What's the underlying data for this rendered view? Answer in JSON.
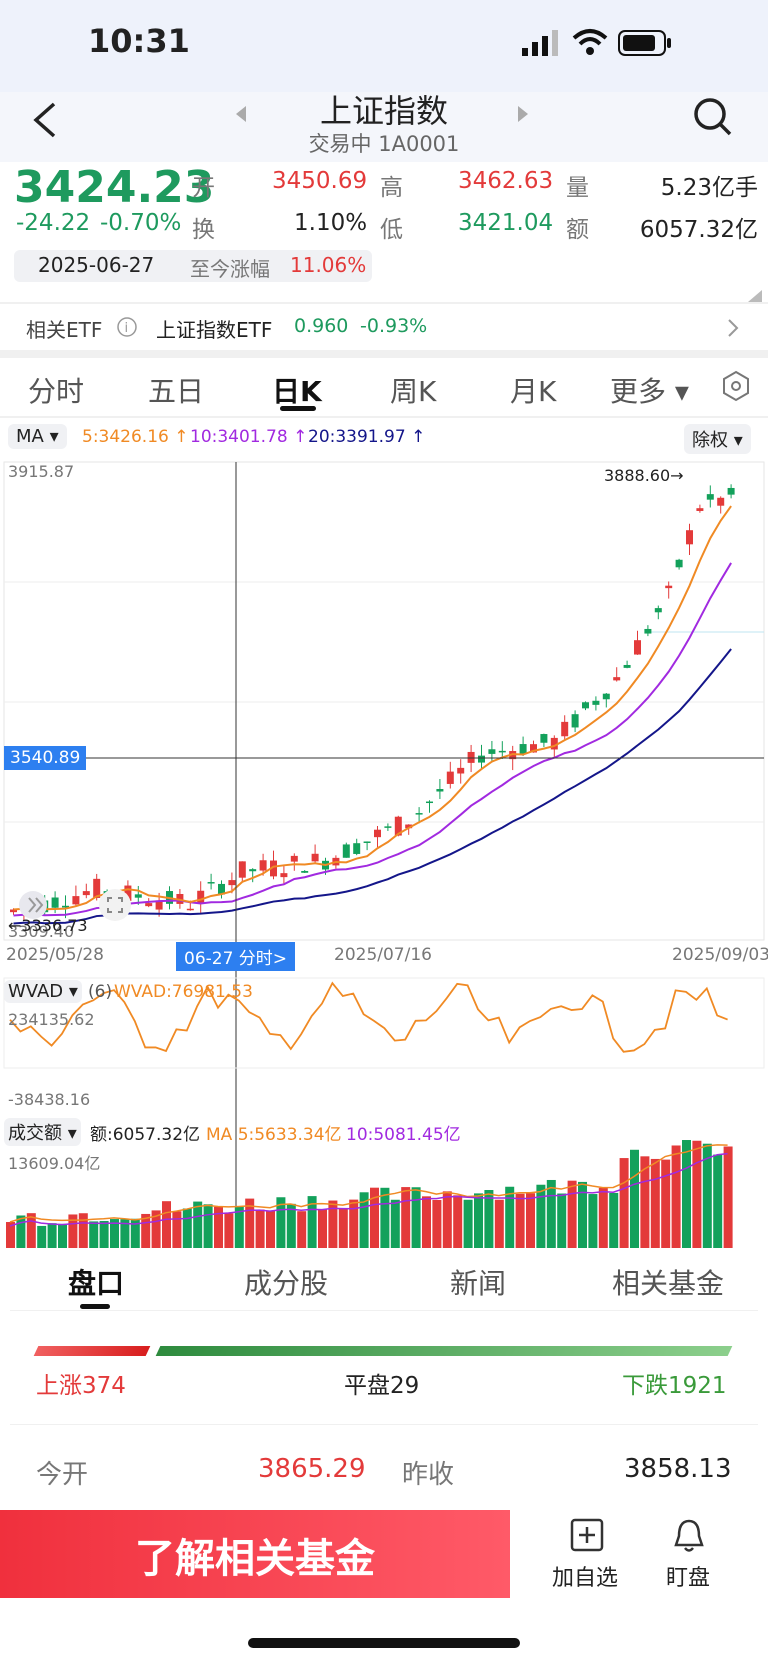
{
  "status": {
    "time": "10:31"
  },
  "header": {
    "title": "上证指数",
    "subtitle": "交易中 1A0001"
  },
  "quote": {
    "price": "3424.23",
    "change": "-24.22",
    "change_pct": "-0.70%",
    "open_label": "开",
    "open": "3450.69",
    "high_label": "高",
    "high": "3462.63",
    "volume_label": "量",
    "volume": "5.23亿手",
    "turnover_label": "换",
    "turnover": "1.10%",
    "low_label": "低",
    "low": "3421.04",
    "amount_label": "额",
    "amount": "6057.32亿",
    "date": "2025-06-27",
    "gain_label": "至今涨幅",
    "gain": "11.06%"
  },
  "etf": {
    "label": "相关ETF",
    "name": "上证指数ETF",
    "price": "0.960",
    "change": "-0.93%"
  },
  "tabs": [
    {
      "label": "分时"
    },
    {
      "label": "五日"
    },
    {
      "label": "日K"
    },
    {
      "label": "周K"
    },
    {
      "label": "月K"
    },
    {
      "label": "更多 ▾"
    }
  ],
  "ma": {
    "selector": "MA ▾",
    "ma5": "5:3426.16 ↑",
    "ma10": "10:3401.78 ↑",
    "ma20": "20:3391.97 ↑",
    "adjust": "除权 ▾",
    "colors": {
      "ma5": "#f08a24",
      "ma10": "#a12ae0",
      "ma20": "#14168a"
    }
  },
  "price_chart": {
    "y_top": "3915.87",
    "y_bottom": "3309.40",
    "crosshair_price": "3540.89",
    "max_label": "3888.60→",
    "min_label": "←3336.73",
    "x_labels": [
      "2025/05/28",
      "2025/07/16",
      "2025/09/03"
    ],
    "crosshair_date": "06-27 分时>"
  },
  "wvad": {
    "selector": "WVAD ▾",
    "param": "(6)",
    "value": "WVAD:76981.53",
    "top": "234135.62",
    "bottom": "-38438.16"
  },
  "vol": {
    "selector": "成交额 ▾",
    "amount": "额:6057.32亿",
    "ma5": "MA 5:5633.34亿",
    "ma10": "10:5081.45亿",
    "top": "13609.04亿"
  },
  "section_tabs": [
    {
      "label": "盘口"
    },
    {
      "label": "成分股"
    },
    {
      "label": "新闻"
    },
    {
      "label": "相关基金"
    }
  ],
  "breadth": {
    "up": "上涨374",
    "flat": "平盘29",
    "down": "下跌1921"
  },
  "open_row": {
    "open_label": "今开",
    "open": "3865.29",
    "close_label": "昨收",
    "close": "3858.13"
  },
  "bottom": {
    "cta": "了解相关基金",
    "watch": "加自选",
    "monitor": "盯盘"
  },
  "chart_data": {
    "type": "candlestick",
    "x_labels": [
      "2025/05/28",
      "2025/07/16",
      "2025/09/03"
    ],
    "ylim": [
      3309.4,
      3915.87
    ]
  }
}
